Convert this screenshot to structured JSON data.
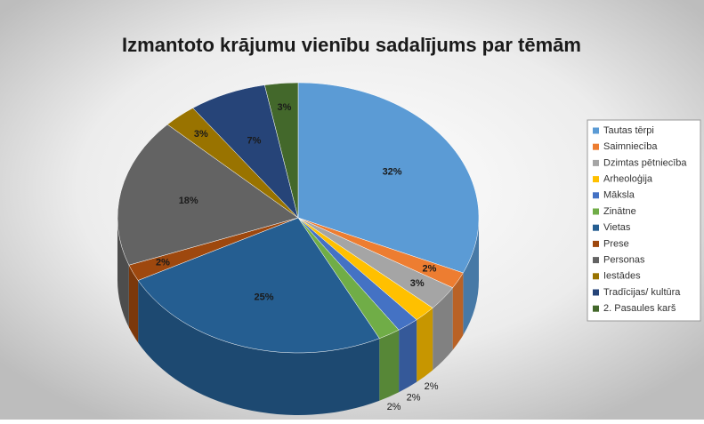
{
  "chart_data": {
    "type": "pie3d",
    "title": "Izmantoto krājumu vienību sadalījums par tēmām",
    "categories": [
      "Tautas tērpi",
      "Saimniecība",
      "Dzimtas pētniecība",
      "Arheoloģija",
      "Māksla",
      "Zinātne",
      "Vietas",
      "Prese",
      "Personas",
      "Iestādes",
      "Tradīcijas/ kultūra",
      "2. Pasaules karš"
    ],
    "values": [
      32,
      2,
      3,
      2,
      2,
      2,
      25,
      2,
      18,
      3,
      7,
      3
    ],
    "value_labels": [
      "32%",
      "2%",
      "3%",
      "2%",
      "2%",
      "2%",
      "25%",
      "2%",
      "18%",
      "3%",
      "7%",
      "3%"
    ],
    "colors": [
      "#5b9bd5",
      "#ed7d31",
      "#a5a5a5",
      "#ffc000",
      "#4472c4",
      "#70ad47",
      "#255e91",
      "#9e480e",
      "#636363",
      "#997300",
      "#264478",
      "#43682b"
    ],
    "legend": "right"
  }
}
